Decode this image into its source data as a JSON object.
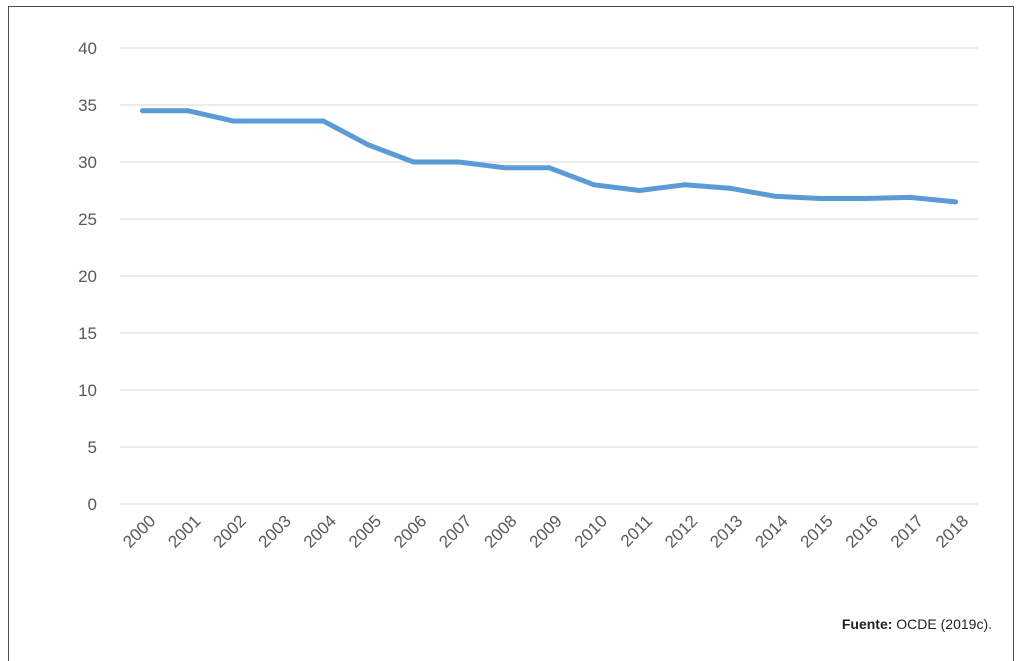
{
  "chart_data": {
    "type": "line",
    "title": "",
    "xlabel": "",
    "ylabel": "",
    "categories": [
      "2000",
      "2001",
      "2002",
      "2003",
      "2004",
      "2005",
      "2006",
      "2007",
      "2008",
      "2009",
      "2010",
      "2011",
      "2012",
      "2013",
      "2014",
      "2015",
      "2016",
      "2017",
      "2018"
    ],
    "series": [
      {
        "color": "#5b9bd5",
        "values": [
          34.5,
          34.5,
          33.6,
          33.6,
          33.6,
          31.5,
          30.0,
          30.0,
          29.5,
          29.5,
          28.0,
          27.5,
          28.0,
          27.7,
          27.0,
          26.8,
          26.8,
          26.9,
          26.5
        ]
      }
    ],
    "ylim": [
      0,
      40
    ],
    "yticks": [
      "0",
      "5",
      "10",
      "15",
      "20",
      "25",
      "30",
      "35",
      "40"
    ],
    "grid": true,
    "legend": "none"
  },
  "source": {
    "label": "Fuente:",
    "text": "OCDE (2019c)."
  }
}
